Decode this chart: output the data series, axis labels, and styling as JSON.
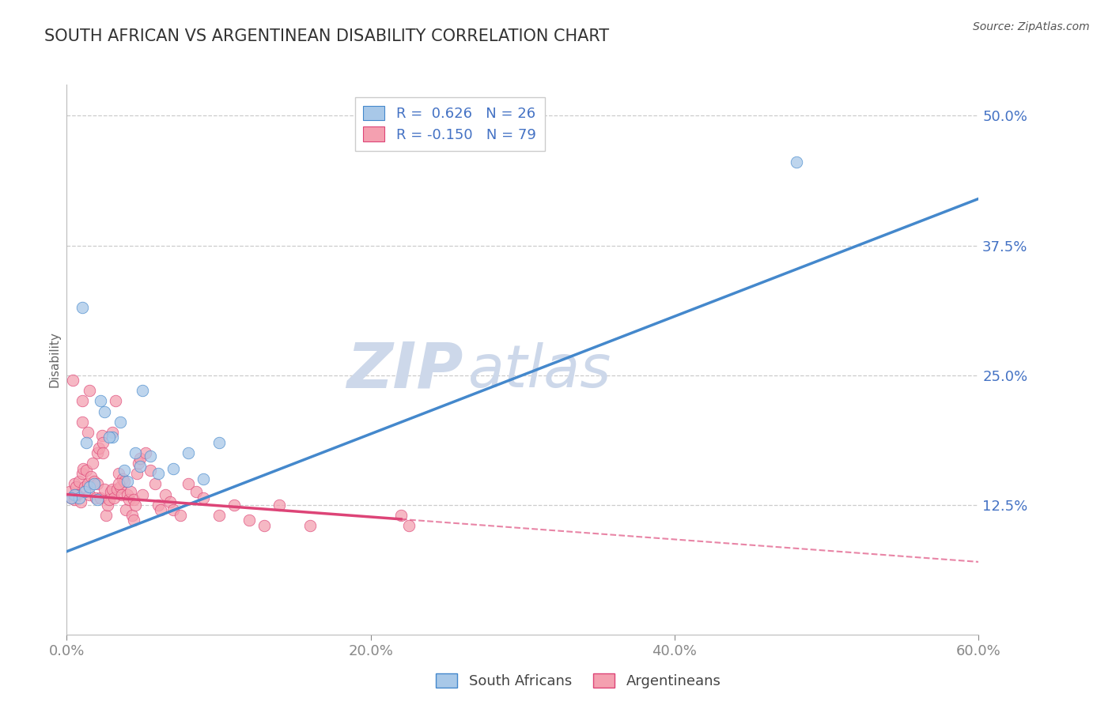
{
  "title": "SOUTH AFRICAN VS ARGENTINEAN DISABILITY CORRELATION CHART",
  "source": "Source: ZipAtlas.com",
  "xlabel_vals": [
    0.0,
    20.0,
    40.0,
    60.0
  ],
  "ylabel_vals": [
    12.5,
    25.0,
    37.5,
    50.0
  ],
  "xlim": [
    0.0,
    60.0
  ],
  "ylim": [
    0.0,
    53.0
  ],
  "blue_R": 0.626,
  "blue_N": 26,
  "pink_R": -0.15,
  "pink_N": 79,
  "legend_label_blue": "South Africans",
  "legend_label_pink": "Argentineans",
  "ylabel": "Disability",
  "blue_color": "#a8c8e8",
  "pink_color": "#f4a0b0",
  "trend_blue_color": "#4488cc",
  "trend_pink_color": "#dd4477",
  "grid_color": "#cccccc",
  "axis_label_color": "#4472c4",
  "title_color": "#333333",
  "watermark_color": "#cdd8ea",
  "blue_trend_x0": 0.0,
  "blue_trend_y0": 8.0,
  "blue_trend_x1": 60.0,
  "blue_trend_y1": 42.0,
  "pink_trend_x0": 0.0,
  "pink_trend_y0": 13.5,
  "pink_trend_x1": 60.0,
  "pink_trend_y1": 7.0,
  "pink_solid_end_x": 22.0,
  "blue_scatter_x": [
    0.5,
    0.8,
    1.2,
    1.5,
    2.0,
    2.5,
    3.0,
    3.5,
    4.0,
    4.5,
    5.0,
    6.0,
    7.0,
    8.0,
    9.0,
    10.0,
    1.0,
    1.8,
    2.8,
    3.8,
    5.5,
    2.2,
    4.8,
    48.0,
    1.3,
    0.3
  ],
  "blue_scatter_y": [
    13.5,
    13.2,
    13.8,
    14.2,
    13.0,
    21.5,
    19.0,
    20.5,
    14.8,
    17.5,
    23.5,
    15.5,
    16.0,
    17.5,
    15.0,
    18.5,
    31.5,
    14.5,
    19.0,
    15.8,
    17.2,
    22.5,
    16.2,
    45.5,
    18.5,
    13.2
  ],
  "pink_scatter_x": [
    0.2,
    0.3,
    0.5,
    0.5,
    0.6,
    0.7,
    0.8,
    0.9,
    1.0,
    1.0,
    1.0,
    1.1,
    1.2,
    1.3,
    1.4,
    1.5,
    1.5,
    1.6,
    1.7,
    1.8,
    1.9,
    2.0,
    2.0,
    2.1,
    2.2,
    2.3,
    2.4,
    2.5,
    2.6,
    2.7,
    2.8,
    2.9,
    3.0,
    3.0,
    3.1,
    3.2,
    3.3,
    3.4,
    3.5,
    3.6,
    3.7,
    3.8,
    3.9,
    4.0,
    4.1,
    4.2,
    4.3,
    4.4,
    4.5,
    4.6,
    4.7,
    4.8,
    5.0,
    5.2,
    5.5,
    5.8,
    6.0,
    6.2,
    6.5,
    6.8,
    7.0,
    7.5,
    8.0,
    8.5,
    9.0,
    10.0,
    11.0,
    12.0,
    13.0,
    14.0,
    16.0,
    0.4,
    1.4,
    2.4,
    3.4,
    4.4,
    22.0,
    22.5,
    0.6
  ],
  "pink_scatter_y": [
    13.8,
    13.2,
    14.5,
    13.0,
    14.2,
    13.5,
    14.8,
    12.8,
    20.5,
    15.5,
    22.5,
    16.0,
    14.2,
    15.8,
    14.5,
    13.5,
    23.5,
    15.2,
    16.5,
    14.8,
    13.2,
    14.5,
    17.5,
    18.0,
    13.2,
    19.2,
    18.5,
    14.0,
    11.5,
    12.5,
    13.0,
    13.8,
    19.5,
    14.0,
    13.2,
    22.5,
    14.0,
    15.5,
    14.2,
    13.5,
    15.0,
    14.8,
    12.0,
    13.5,
    13.0,
    13.8,
    11.5,
    13.0,
    12.5,
    15.5,
    16.5,
    17.0,
    13.5,
    17.5,
    15.8,
    14.5,
    12.5,
    12.0,
    13.5,
    12.8,
    12.0,
    11.5,
    14.5,
    13.8,
    13.2,
    11.5,
    12.5,
    11.0,
    10.5,
    12.5,
    10.5,
    24.5,
    19.5,
    17.5,
    14.5,
    11.0,
    11.5,
    10.5,
    13.5
  ]
}
